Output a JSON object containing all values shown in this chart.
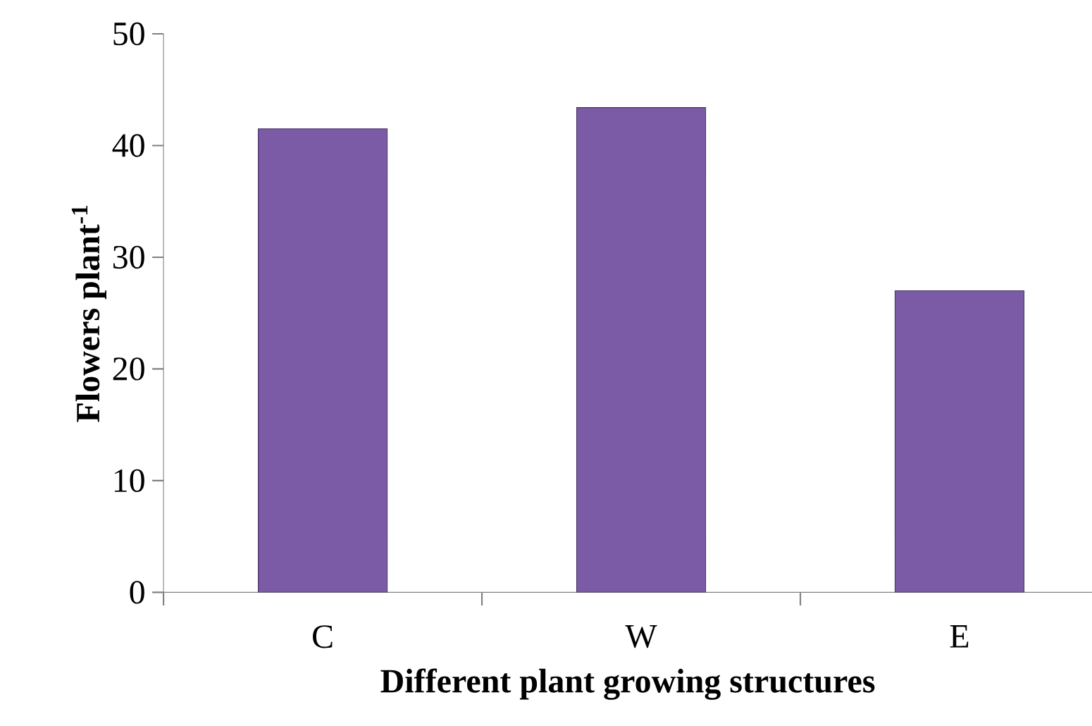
{
  "chart_data": {
    "type": "bar",
    "categories": [
      "C",
      "W",
      "E"
    ],
    "values": [
      41.5,
      43.4,
      27.0
    ],
    "color": "#7b5aa6",
    "xlabel": "Different plant growing structures",
    "ylabel": "Flowers plant$^{-1}$",
    "ylim": [
      0,
      50
    ],
    "yticks": [
      0,
      10,
      20,
      30,
      40,
      50
    ],
    "grid": false
  }
}
